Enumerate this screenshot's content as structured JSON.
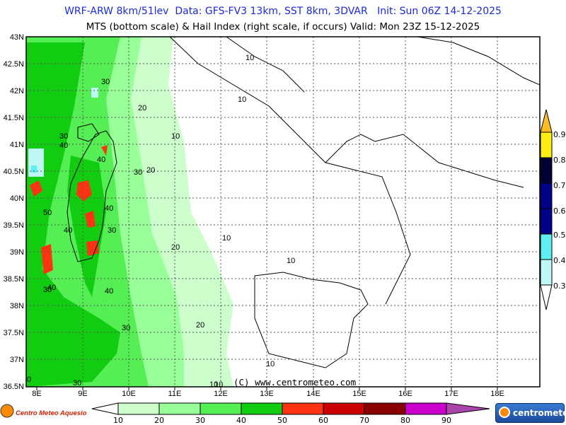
{
  "header": {
    "line1": "WRF-ARW 8km/51lev  Data: GFS-FV3 13km, SST 8km, 3DVAR   Init: Sun 06Z 14-12-2025",
    "line2": "MTS (bottom scale) & Hail Index (right scale, if occurs) Valid: Mon 23Z 15-12-2025"
  },
  "map": {
    "lon_labels": [
      "8E",
      "9E",
      "10E",
      "11E",
      "12E",
      "13E",
      "14E",
      "15E",
      "16E",
      "17E",
      "18E"
    ],
    "lat_labels": [
      "43N",
      "42.5N",
      "42N",
      "41.5N",
      "41N",
      "40.5N",
      "40N",
      "39.5N",
      "39N",
      "38.5N",
      "38N",
      "37.5N",
      "37N",
      "36.5N"
    ],
    "contour_labels": [
      "10",
      "10",
      "10",
      "10",
      "10",
      "10",
      "10",
      "10",
      "20",
      "20",
      "20",
      "20",
      "30",
      "30",
      "30",
      "30",
      "30",
      "30",
      "30",
      "40",
      "40",
      "40",
      "40",
      "40",
      "40",
      "50",
      "0"
    ],
    "copyright": "(C) www.centrometeo.com"
  },
  "mts_scale": {
    "labels": [
      "10",
      "20",
      "30",
      "40",
      "50",
      "60",
      "70",
      "80",
      "90"
    ],
    "colors": [
      "#ccffcc",
      "#99ff99",
      "#55ee55",
      "#11cc11",
      "#ff3311",
      "#cc0000",
      "#880000",
      "#cc00cc",
      "#aa44aa"
    ]
  },
  "hail_scale": {
    "labels": [
      "0.9",
      "0.8",
      "0.7",
      "0.6",
      "0.5",
      "0.4",
      "0.3"
    ],
    "colors": [
      "#ffbb22",
      "#ffee11",
      "#000033",
      "#000088",
      "#5ef0f0",
      "#bff7f7"
    ]
  },
  "logos": {
    "left": "Centro Meteo Aquesio",
    "right": "centrometeo"
  }
}
